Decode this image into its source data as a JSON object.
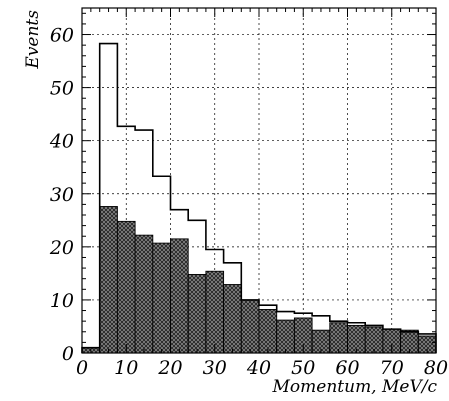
{
  "chart_data": {
    "type": "bar",
    "title": "",
    "xlabel": "Momentum, MeV/c",
    "ylabel": "Events",
    "xlim": [
      0,
      80
    ],
    "ylim": [
      0,
      65
    ],
    "x_ticks": [
      0,
      10,
      20,
      30,
      40,
      50,
      60,
      70,
      80
    ],
    "y_ticks": [
      0,
      10,
      20,
      30,
      40,
      50,
      60
    ],
    "grid": true,
    "bin_edges": [
      0,
      4,
      8,
      12,
      16,
      20,
      24,
      28,
      32,
      36,
      40,
      44,
      48,
      52,
      56,
      60,
      64,
      68,
      72,
      76,
      80
    ],
    "series": [
      {
        "style": "outline",
        "color": "#000000",
        "values": [
          1.0,
          58.3,
          42.7,
          42.0,
          33.3,
          27.0,
          25.0,
          19.5,
          17.0,
          10.0,
          9.0,
          7.8,
          7.5,
          7.0,
          6.0,
          5.7,
          5.2,
          4.5,
          4.0,
          3.6
        ]
      },
      {
        "style": "hatched",
        "color": "#7a7a7a",
        "values": [
          1.0,
          27.6,
          24.8,
          22.2,
          20.7,
          21.5,
          14.8,
          15.4,
          12.9,
          10.0,
          8.2,
          6.2,
          6.6,
          4.3,
          5.7,
          5.2,
          4.9,
          4.5,
          4.3,
          3.2
        ]
      }
    ]
  }
}
